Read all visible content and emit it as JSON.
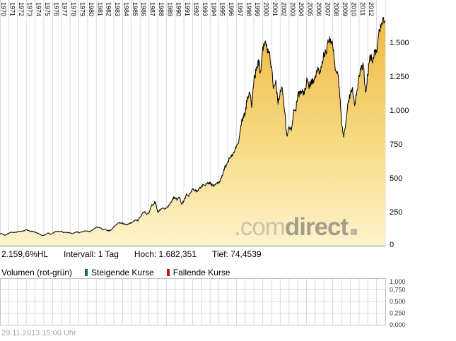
{
  "timestamp": "29.11.2013 15:00 Uhr",
  "stats": {
    "change": "2.159,6%HL",
    "interval": "Intervall: 1 Tag",
    "high": "Hoch: 1.682,351",
    "low": "Tief: 74,4539"
  },
  "legend": {
    "volume_label": "Volumen (rot-grün)",
    "rising_label": "Steigende Kurse",
    "falling_label": "Fallende Kurse",
    "rising_color": "#137a33",
    "falling_color": "#cc1111"
  },
  "watermark": {
    "prefix": ".com",
    "name": "direct"
  },
  "colors": {
    "area_top": "#edb43c",
    "area_mid": "#f6d87d",
    "area_bottom": "#fdf3cc",
    "line": "#000000",
    "grid": "#d8d8d8",
    "axis": "#808080"
  },
  "chart_data": [
    {
      "type": "area",
      "title": "",
      "xlabel": "",
      "ylabel": "",
      "grid": "vertical-yearly",
      "x_range": [
        1970,
        2014
      ],
      "x_start_year": 1970,
      "points_per_year": 4,
      "interval": "1 Tag",
      "high": 1682.351,
      "low": 74.4539,
      "ylim": [
        0,
        1812
      ],
      "x_tick_labels": [
        "1970",
        "1971",
        "1972",
        "1973",
        "1974",
        "1975",
        "1976",
        "1977",
        "1978",
        "1979",
        "1980",
        "1981",
        "1982",
        "1983",
        "1984",
        "1985",
        "1986",
        "1987",
        "1988",
        "1989",
        "1990",
        "1991",
        "1992",
        "1993",
        "1994",
        "1995",
        "1996",
        "1997",
        "1998",
        "1999",
        "2000",
        "2001",
        "2002",
        "2003",
        "2004",
        "2005",
        "2006",
        "2007",
        "2008",
        "2009",
        "2010",
        "2011",
        "2012"
      ],
      "y_ticks": [
        {
          "value": 1500,
          "label": "1.500"
        },
        {
          "value": 1250,
          "label": "1.250"
        },
        {
          "value": 1000,
          "label": "1.000"
        },
        {
          "value": 750,
          "label": "750"
        },
        {
          "value": 500,
          "label": "500"
        },
        {
          "value": 250,
          "label": "250"
        },
        {
          "value": 0,
          "label": "0"
        }
      ],
      "values": [
        88,
        76,
        83,
        92,
        100,
        99,
        98,
        102,
        107,
        107,
        110,
        118,
        112,
        104,
        108,
        97,
        93,
        87,
        75,
        77,
        84,
        95,
        84,
        90,
        103,
        104,
        105,
        107,
        98,
        100,
        97,
        95,
        89,
        95,
        103,
        96,
        101,
        103,
        109,
        108,
        102,
        114,
        125,
        136,
        136,
        131,
        116,
        123,
        112,
        110,
        120,
        141,
        153,
        168,
        166,
        165,
        159,
        153,
        166,
        167,
        181,
        192,
        182,
        211,
        239,
        251,
        231,
        242,
        292,
        304,
        322,
        247,
        259,
        274,
        272,
        278,
        295,
        318,
        349,
        353,
        339,
        358,
        306,
        330,
        375,
        371,
        388,
        417,
        404,
        408,
        418,
        436,
        452,
        451,
        459,
        467,
        446,
        444,
        463,
        459,
        501,
        545,
        584,
        616,
        645,
        671,
        687,
        741,
        757,
        885,
        947,
        970,
        1102,
        1134,
        1017,
        1229,
        1286,
        1373,
        1283,
        1469,
        1499,
        1455,
        1436,
        1320,
        1160,
        1224,
        1041,
        1148,
        1147,
        990,
        815,
        880,
        848,
        975,
        996,
        1112,
        1126,
        1141,
        1115,
        1212,
        1181,
        1191,
        1229,
        1248,
        1295,
        1270,
        1336,
        1418,
        1421,
        1503,
        1527,
        1468,
        1323,
        1280,
        1166,
        903,
        798,
        919,
        1057,
        1115,
        1169,
        1031,
        1141,
        1258,
        1326,
        1321,
        1131,
        1258,
        1408,
        1362,
        1441,
        1426,
        1569,
        1606,
        1682,
        1660
      ]
    },
    {
      "type": "bar",
      "title": "Volumen",
      "grid": "vertical-yearly",
      "y_tick_labels": [
        "1,000",
        "0,750",
        "0,500",
        "0,250",
        "0,000"
      ],
      "ylim": [
        0,
        1
      ],
      "values": []
    }
  ]
}
